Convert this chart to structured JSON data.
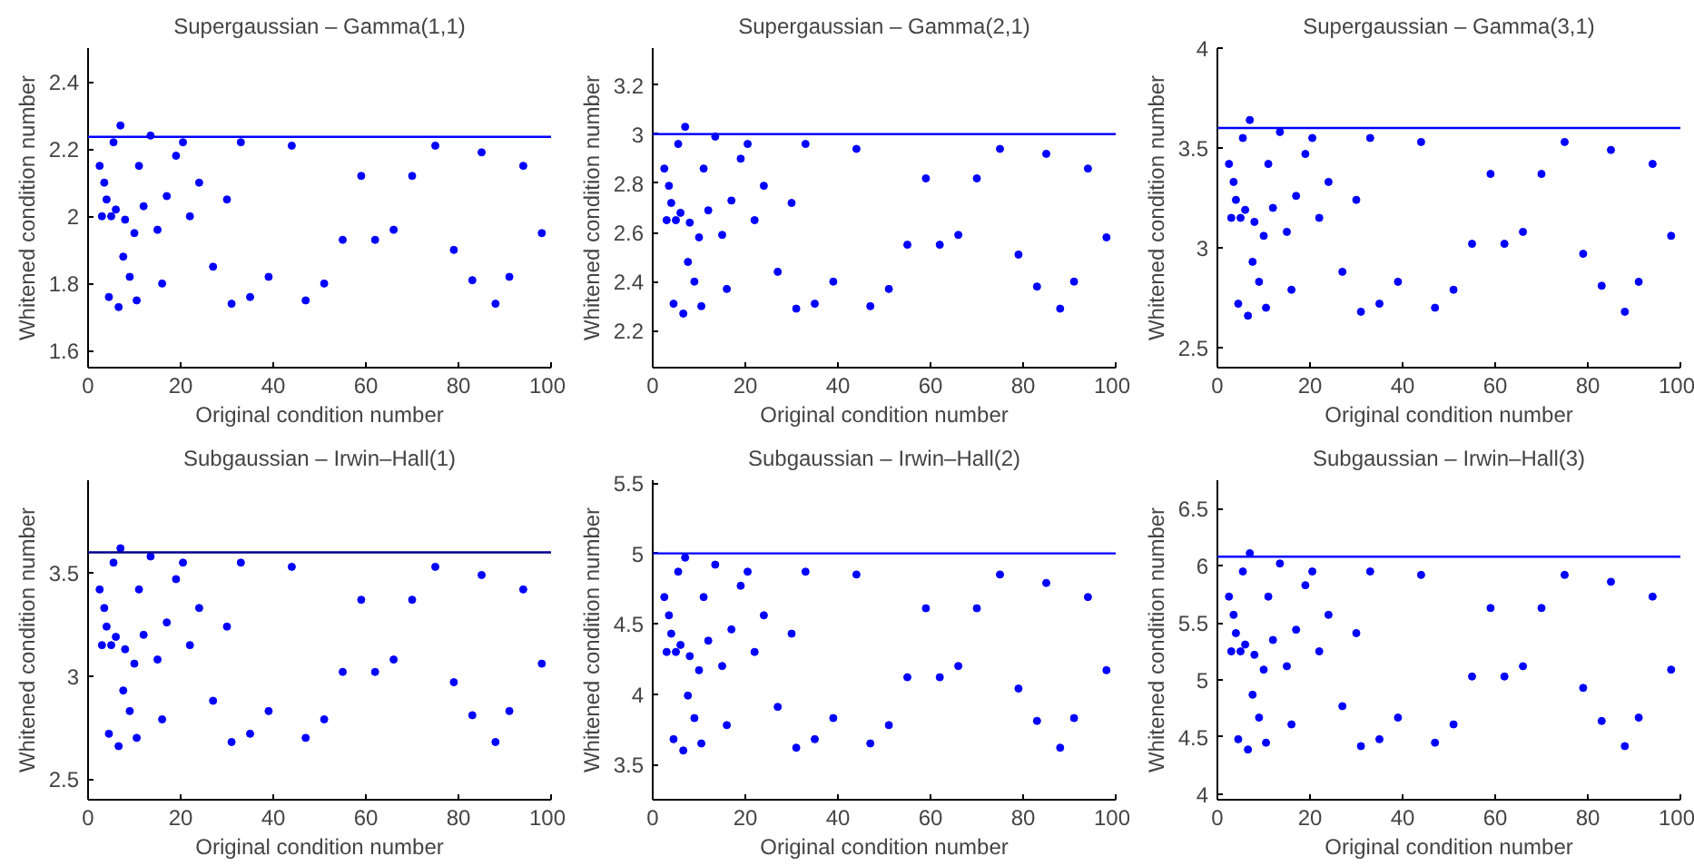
{
  "chart_data": [
    {
      "type": "scatter",
      "title": "Supergaussian – Gamma(1,1)",
      "xlabel": "Original condition number",
      "ylabel": "Whitened condition number",
      "marker": "circle",
      "grid": false,
      "xlim": [
        0,
        100
      ],
      "xticks": [
        0,
        20,
        40,
        60,
        80,
        100
      ],
      "ylim": [
        1.55,
        2.5
      ],
      "yticks": [
        1.6,
        1.8,
        2,
        2.2,
        2.4
      ],
      "ref_lines": [
        {
          "axis": "y",
          "value": 2.236,
          "color": "#0000ff"
        }
      ],
      "x": [
        2.5,
        3,
        3.5,
        4,
        4.5,
        5,
        5.5,
        6,
        6.6,
        7,
        7.6,
        8,
        9,
        10,
        10.5,
        11,
        12,
        13.5,
        15,
        16,
        17,
        19,
        20.5,
        22,
        24,
        27,
        30,
        31,
        33,
        35,
        39,
        44,
        47,
        51,
        55,
        59,
        62,
        66,
        70,
        75,
        79,
        83,
        85,
        88,
        91,
        94,
        98
      ],
      "series": [
        {
          "color": "#0000ff",
          "values": [
            2.15,
            2.0,
            2.1,
            2.05,
            1.76,
            2.0,
            2.22,
            2.02,
            1.73,
            2.27,
            1.88,
            1.99,
            1.82,
            1.95,
            1.75,
            2.15,
            2.03,
            2.24,
            1.96,
            1.8,
            2.06,
            2.18,
            2.22,
            2.0,
            2.1,
            1.85,
            2.05,
            1.74,
            2.22,
            1.76,
            1.82,
            2.21,
            1.75,
            1.8,
            1.93,
            2.12,
            1.93,
            1.96,
            2.12,
            2.21,
            1.9,
            1.81,
            2.19,
            1.74,
            1.82,
            2.15,
            1.95
          ]
        }
      ]
    },
    {
      "type": "scatter",
      "title": "Supergaussian – Gamma(2,1)",
      "xlabel": "Original condition number",
      "ylabel": "Whitened condition number",
      "marker": "circle",
      "grid": false,
      "xlim": [
        0,
        100
      ],
      "xticks": [
        0,
        20,
        40,
        60,
        80,
        100
      ],
      "ylim": [
        2.05,
        3.35
      ],
      "yticks": [
        2.2,
        2.4,
        2.6,
        2.8,
        3,
        3.2
      ],
      "ref_lines": [
        {
          "axis": "y",
          "value": 3.0,
          "color": "#0000ff"
        }
      ],
      "x": [
        2.5,
        3,
        3.5,
        4,
        4.5,
        5,
        5.5,
        6,
        6.6,
        7,
        7.6,
        8,
        9,
        10,
        10.5,
        11,
        12,
        13.5,
        15,
        16,
        17,
        19,
        20.5,
        22,
        24,
        27,
        30,
        31,
        33,
        35,
        39,
        44,
        47,
        51,
        55,
        59,
        62,
        66,
        70,
        75,
        79,
        83,
        85,
        88,
        91,
        94,
        98
      ],
      "series": [
        {
          "color": "#0000ff",
          "values": [
            2.86,
            2.65,
            2.79,
            2.72,
            2.31,
            2.65,
            2.96,
            2.68,
            2.27,
            3.03,
            2.48,
            2.64,
            2.4,
            2.58,
            2.3,
            2.86,
            2.69,
            2.99,
            2.59,
            2.37,
            2.73,
            2.9,
            2.96,
            2.65,
            2.79,
            2.44,
            2.72,
            2.29,
            2.96,
            2.31,
            2.4,
            2.94,
            2.3,
            2.37,
            2.55,
            2.82,
            2.55,
            2.59,
            2.82,
            2.94,
            2.51,
            2.38,
            2.92,
            2.29,
            2.4,
            2.86,
            2.58
          ]
        }
      ]
    },
    {
      "type": "scatter",
      "title": "Supergaussian – Gamma(3,1)",
      "xlabel": "Original condition number",
      "ylabel": "Whitened condition number",
      "marker": "circle",
      "grid": false,
      "xlim": [
        0,
        100
      ],
      "xticks": [
        0,
        20,
        40,
        60,
        80,
        100
      ],
      "ylim": [
        2.4,
        4
      ],
      "yticks": [
        2.5,
        3,
        3.5,
        4
      ],
      "ref_lines": [
        {
          "axis": "y",
          "value": 3.6,
          "color": "#0000ff"
        }
      ],
      "x": [
        2.5,
        3,
        3.5,
        4,
        4.5,
        5,
        5.5,
        6,
        6.6,
        7,
        7.6,
        8,
        9,
        10,
        10.5,
        11,
        12,
        13.5,
        15,
        16,
        17,
        19,
        20.5,
        22,
        24,
        27,
        30,
        31,
        33,
        35,
        39,
        44,
        47,
        51,
        55,
        59,
        62,
        66,
        70,
        75,
        79,
        83,
        85,
        88,
        91,
        94,
        98
      ],
      "series": [
        {
          "color": "#0000ff",
          "values": [
            3.42,
            3.15,
            3.33,
            3.24,
            2.72,
            3.15,
            3.55,
            3.19,
            2.66,
            3.64,
            2.93,
            3.13,
            2.83,
            3.06,
            2.7,
            3.42,
            3.2,
            3.58,
            3.08,
            2.79,
            3.26,
            3.47,
            3.55,
            3.15,
            3.33,
            2.88,
            3.24,
            2.68,
            3.55,
            2.72,
            2.83,
            3.53,
            2.7,
            2.79,
            3.02,
            3.37,
            3.02,
            3.08,
            3.37,
            3.53,
            2.97,
            2.81,
            3.49,
            2.68,
            2.83,
            3.42,
            3.06
          ]
        }
      ]
    },
    {
      "type": "scatter",
      "title": "Subgaussian – Irwin–Hall(1)",
      "xlabel": "Original condition number",
      "ylabel": "Whitened condition number",
      "marker": "circle",
      "grid": false,
      "xlim": [
        0,
        100
      ],
      "xticks": [
        0,
        20,
        40,
        60,
        80,
        100
      ],
      "ylim": [
        2.4,
        3.95
      ],
      "yticks": [
        2.5,
        3,
        3.5
      ],
      "ref_lines": [
        {
          "axis": "y",
          "value": 3.6,
          "color": "#00008b"
        }
      ],
      "x": [
        2.5,
        3,
        3.5,
        4,
        4.5,
        5,
        5.5,
        6,
        6.6,
        7,
        7.6,
        8,
        9,
        10,
        10.5,
        11,
        12,
        13.5,
        15,
        16,
        17,
        19,
        20.5,
        22,
        24,
        27,
        30,
        31,
        33,
        35,
        39,
        44,
        47,
        51,
        55,
        59,
        62,
        66,
        70,
        75,
        79,
        83,
        85,
        88,
        91,
        94,
        98
      ],
      "series": [
        {
          "color": "#0000ff",
          "values": [
            3.42,
            3.15,
            3.33,
            3.24,
            2.72,
            3.15,
            3.55,
            3.19,
            2.66,
            3.62,
            2.93,
            3.13,
            2.83,
            3.06,
            2.7,
            3.42,
            3.2,
            3.58,
            3.08,
            2.79,
            3.26,
            3.47,
            3.55,
            3.15,
            3.33,
            2.88,
            3.24,
            2.68,
            3.55,
            2.72,
            2.83,
            3.53,
            2.7,
            2.79,
            3.02,
            3.37,
            3.02,
            3.08,
            3.37,
            3.53,
            2.97,
            2.81,
            3.49,
            2.68,
            2.83,
            3.42,
            3.06
          ]
        }
      ]
    },
    {
      "type": "scatter",
      "title": "Subgaussian – Irwin–Hall(2)",
      "xlabel": "Original condition number",
      "ylabel": "Whitened condition number",
      "marker": "circle",
      "grid": false,
      "xlim": [
        0,
        100
      ],
      "xticks": [
        0,
        20,
        40,
        60,
        80,
        100
      ],
      "ylim": [
        3.25,
        5.52
      ],
      "yticks": [
        3.5,
        4,
        4.5,
        5,
        5.5
      ],
      "ref_lines": [
        {
          "axis": "y",
          "value": 5.0,
          "color": "#0000ff"
        }
      ],
      "x": [
        2.5,
        3,
        3.5,
        4,
        4.5,
        5,
        5.5,
        6,
        6.6,
        7,
        7.6,
        8,
        9,
        10,
        10.5,
        11,
        12,
        13.5,
        15,
        16,
        17,
        19,
        20.5,
        22,
        24,
        27,
        30,
        31,
        33,
        35,
        39,
        44,
        47,
        51,
        55,
        59,
        62,
        66,
        70,
        75,
        79,
        83,
        85,
        88,
        91,
        94,
        98
      ],
      "series": [
        {
          "color": "#0000ff",
          "values": [
            4.69,
            4.3,
            4.56,
            4.43,
            3.68,
            4.3,
            4.87,
            4.35,
            3.6,
            4.97,
            3.99,
            4.27,
            3.83,
            4.17,
            3.65,
            4.69,
            4.38,
            4.92,
            4.2,
            3.78,
            4.46,
            4.77,
            4.87,
            4.3,
            4.56,
            3.91,
            4.43,
            3.62,
            4.87,
            3.68,
            3.83,
            4.85,
            3.65,
            3.78,
            4.12,
            4.61,
            4.12,
            4.2,
            4.61,
            4.85,
            4.04,
            3.81,
            4.79,
            3.62,
            3.83,
            4.69,
            4.17
          ]
        }
      ]
    },
    {
      "type": "scatter",
      "title": "Subgaussian – Irwin–Hall(3)",
      "xlabel": "Original condition number",
      "ylabel": "Whitened condition number",
      "marker": "circle",
      "grid": false,
      "xlim": [
        0,
        100
      ],
      "xticks": [
        0,
        20,
        40,
        60,
        80,
        100
      ],
      "ylim": [
        3.95,
        6.75
      ],
      "yticks": [
        4,
        4.5,
        5,
        5.5,
        6,
        6.5
      ],
      "ref_lines": [
        {
          "axis": "y",
          "value": 6.08,
          "color": "#0000ff"
        }
      ],
      "x": [
        2.5,
        3,
        3.5,
        4,
        4.5,
        5,
        5.5,
        6,
        6.6,
        7,
        7.6,
        8,
        9,
        10,
        10.5,
        11,
        12,
        13.5,
        15,
        16,
        17,
        19,
        20.5,
        22,
        24,
        27,
        30,
        31,
        33,
        35,
        39,
        44,
        47,
        51,
        55,
        59,
        62,
        66,
        70,
        75,
        79,
        83,
        85,
        88,
        91,
        94,
        98
      ],
      "series": [
        {
          "color": "#0000ff",
          "values": [
            5.73,
            5.25,
            5.57,
            5.41,
            4.48,
            5.25,
            5.95,
            5.31,
            4.39,
            6.11,
            4.87,
            5.22,
            4.67,
            5.09,
            4.45,
            5.73,
            5.35,
            6.02,
            5.12,
            4.61,
            5.44,
            5.83,
            5.95,
            5.25,
            5.57,
            4.77,
            5.41,
            4.42,
            5.95,
            4.48,
            4.67,
            5.92,
            4.45,
            4.61,
            5.03,
            5.63,
            5.03,
            5.12,
            5.63,
            5.92,
            4.93,
            4.64,
            5.86,
            4.42,
            4.67,
            5.73,
            5.09
          ]
        }
      ]
    }
  ]
}
